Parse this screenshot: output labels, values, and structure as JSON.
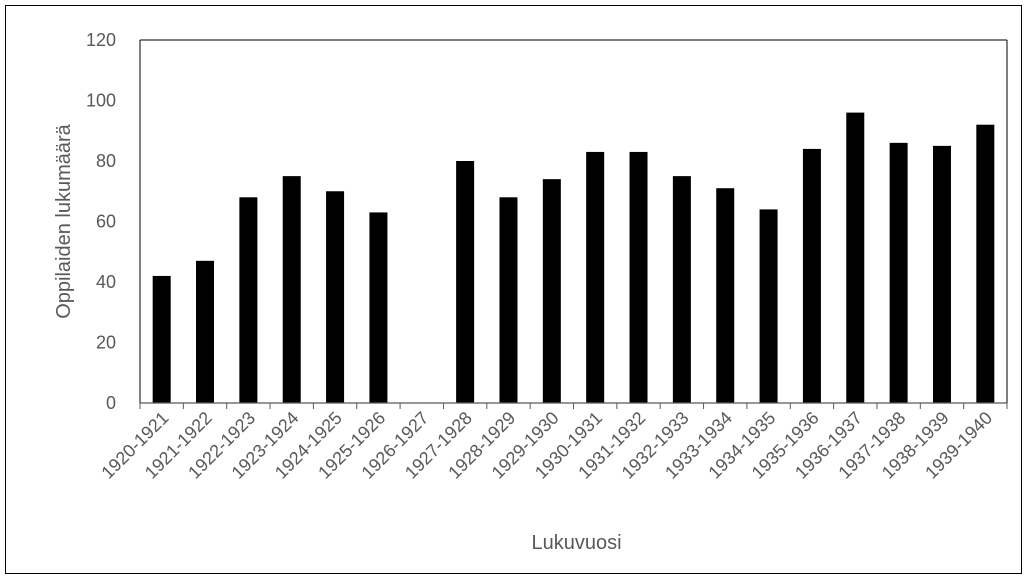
{
  "chart_data": {
    "type": "bar",
    "title": "",
    "xlabel": "Lukuvuosi",
    "ylabel": "Oppilaiden lukumäärä",
    "ylim": [
      0,
      120
    ],
    "yticks": [
      0,
      20,
      40,
      60,
      80,
      100,
      120
    ],
    "grid": false,
    "legend": "none",
    "bar_color": "#000000",
    "categories": [
      "1920-1921",
      "1921-1922",
      "1922-1923",
      "1923-1924",
      "1924-1925",
      "1925-1926",
      "1926-1927",
      "1927-1928",
      "1928-1929",
      "1929-1930",
      "1930-1931",
      "1931-1932",
      "1932-1933",
      "1933-1934",
      "1934-1935",
      "1935-1936",
      "1936-1937",
      "1937-1938",
      "1938-1939",
      "1939-1940"
    ],
    "values": [
      42,
      47,
      68,
      75,
      70,
      63,
      null,
      80,
      68,
      74,
      83,
      83,
      75,
      71,
      64,
      84,
      96,
      86,
      85,
      92
    ]
  }
}
